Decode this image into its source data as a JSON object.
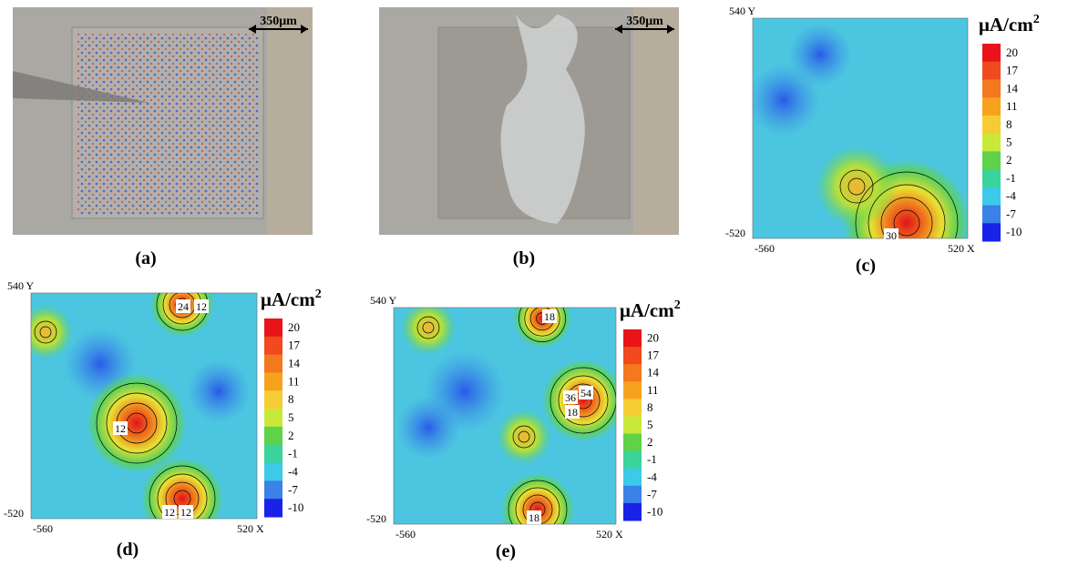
{
  "panels": [
    {
      "label": "(a)",
      "scale_bar": "350μm"
    },
    {
      "label": "(b)",
      "scale_bar": "350μm"
    },
    {
      "label": "(c)",
      "unit": "μA/cm",
      "unit_power": "2",
      "colorbar_ticks": [
        20,
        17,
        14,
        11,
        8,
        5,
        2,
        -1,
        -4,
        -7,
        -10
      ],
      "y_top": "540 Y",
      "y_bottom": "-520",
      "x_left": "-560",
      "x_right": "520 X",
      "contour_labels": [
        "30"
      ]
    },
    {
      "label": "(d)",
      "unit": "μA/cm",
      "unit_power": "2",
      "colorbar_ticks": [
        20,
        17,
        14,
        11,
        8,
        5,
        2,
        -1,
        -4,
        -7,
        -10
      ],
      "y_top": "540 Y",
      "y_bottom": "-520",
      "x_left": "-560",
      "x_right": "520 X",
      "contour_labels": [
        "24",
        "12",
        "12",
        "12",
        "12"
      ]
    },
    {
      "label": "(e)",
      "unit": "μA/cm",
      "unit_power": "2",
      "colorbar_ticks": [
        20,
        17,
        14,
        11,
        8,
        5,
        2,
        -1,
        -4,
        -7,
        -10
      ],
      "y_top": "540 Y",
      "y_bottom": "-520",
      "x_left": "-560",
      "x_right": "520 X",
      "contour_labels": [
        "18",
        "36",
        "54",
        "18",
        "18"
      ]
    }
  ]
}
